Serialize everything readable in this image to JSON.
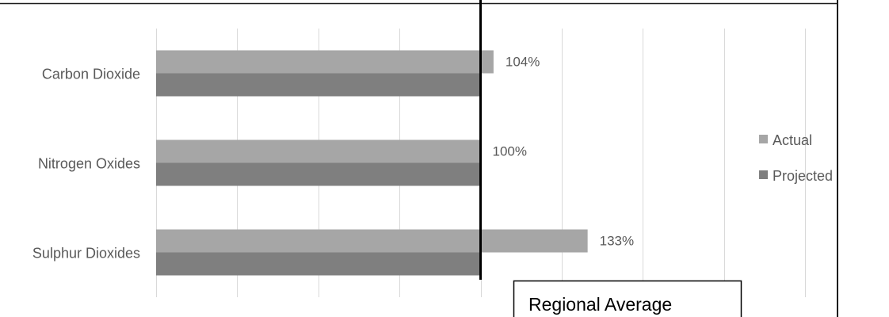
{
  "chart_data": {
    "type": "bar",
    "orientation": "horizontal",
    "categories": [
      "Carbon Dioxide",
      "Nitrogen Oxides",
      "Sulphur Dioxides"
    ],
    "series": [
      {
        "name": "Actual",
        "values": [
          104,
          100,
          133
        ],
        "color": "#a6a6a6",
        "data_labels": [
          "104%",
          "100%",
          "133%"
        ]
      },
      {
        "name": "Projected",
        "values": [
          100,
          100,
          100
        ],
        "color": "#7f7f7f"
      }
    ],
    "xlim": [
      0,
      200
    ],
    "grid": true,
    "legend_position": "right",
    "reference_line": {
      "value": 100,
      "label": "Regional Average"
    }
  }
}
